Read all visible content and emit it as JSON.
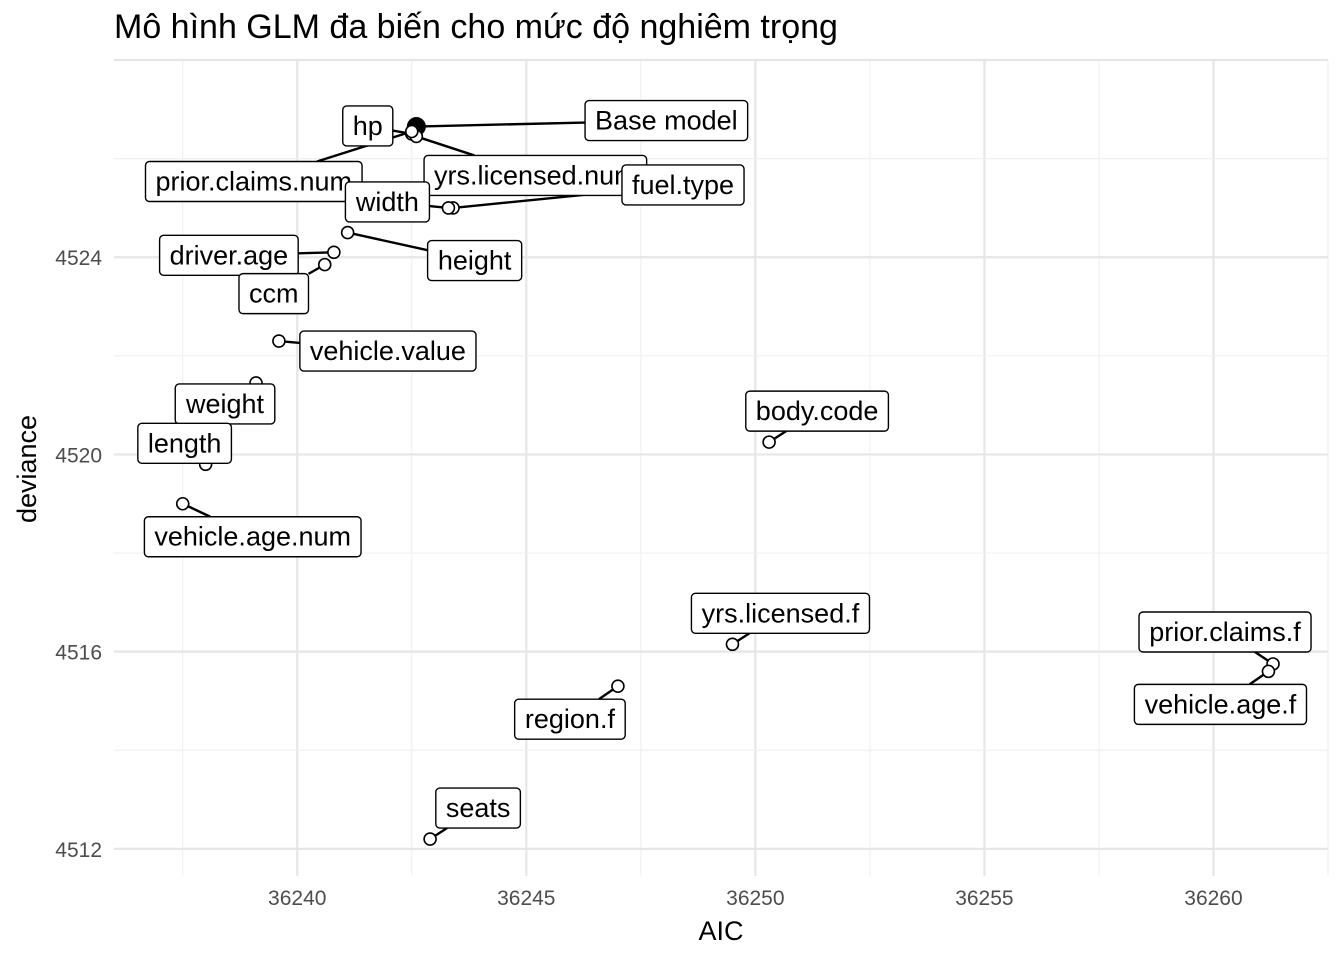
{
  "chart_data": {
    "type": "scatter",
    "title": "Mô hình GLM đa biến cho mức độ nghiêm trọng",
    "xlabel": "AIC",
    "ylabel": "deviance",
    "xlim": [
      36236.0,
      36262.5
    ],
    "ylim": [
      4511.45,
      4528.0
    ],
    "x_ticks": [
      36240,
      36245,
      36250,
      36255,
      36260
    ],
    "y_ticks": [
      4512,
      4516,
      4520,
      4524
    ],
    "grid": true,
    "points": [
      {
        "label": "Base model",
        "x": 36242.6,
        "y": 4526.65,
        "base": true
      },
      {
        "label": "hp",
        "x": 36242.5,
        "y": 4526.5
      },
      {
        "label": "yrs.licensed.num",
        "x": 36242.6,
        "y": 4526.45
      },
      {
        "label": "prior.claims.num",
        "x": 36242.5,
        "y": 4526.55
      },
      {
        "label": "fuel.type",
        "x": 36243.4,
        "y": 4525.0
      },
      {
        "label": "width",
        "x": 36243.3,
        "y": 4525.0
      },
      {
        "label": "height",
        "x": 36241.1,
        "y": 4524.5
      },
      {
        "label": "driver.age",
        "x": 36240.8,
        "y": 4524.1
      },
      {
        "label": "ccm",
        "x": 36240.6,
        "y": 4523.85
      },
      {
        "label": "vehicle.value",
        "x": 36239.6,
        "y": 4522.3
      },
      {
        "label": "weight",
        "x": 36239.1,
        "y": 4521.45
      },
      {
        "label": "length",
        "x": 36238.0,
        "y": 4519.8
      },
      {
        "label": "vehicle.age.num",
        "x": 36237.5,
        "y": 4519.0
      },
      {
        "label": "body.code",
        "x": 36250.3,
        "y": 4520.25
      },
      {
        "label": "yrs.licensed.f",
        "x": 36249.5,
        "y": 4516.15
      },
      {
        "label": "region.f",
        "x": 36247.0,
        "y": 4515.3
      },
      {
        "label": "seats",
        "x": 36242.9,
        "y": 4512.2
      },
      {
        "label": "prior.claims.f",
        "x": 36261.3,
        "y": 4515.75
      },
      {
        "label": "vehicle.age.f",
        "x": 36261.2,
        "y": 4515.6
      }
    ]
  }
}
